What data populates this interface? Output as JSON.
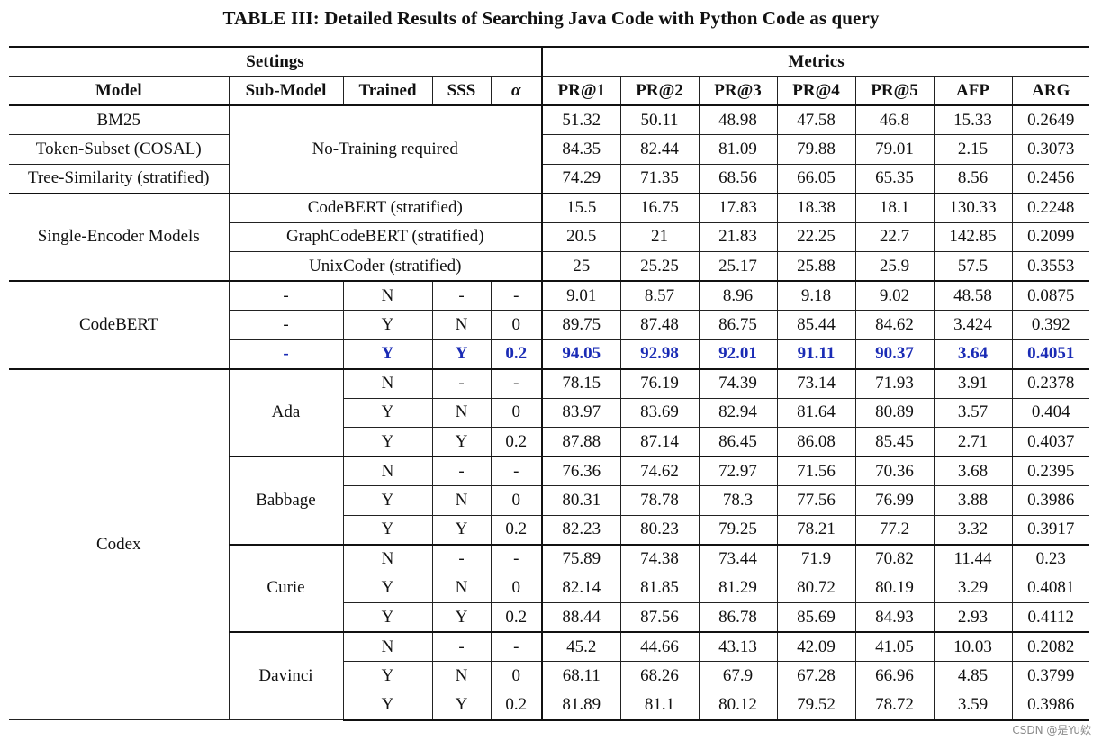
{
  "caption": "TABLE III: Detailed Results of Searching Java Code with Python Code as query",
  "group_headers": {
    "settings": "Settings",
    "metrics": "Metrics"
  },
  "columns": [
    "Model",
    "Sub-Model",
    "Trained",
    "SSS",
    "α",
    "PR@1",
    "PR@2",
    "PR@3",
    "PR@4",
    "PR@5",
    "AFP",
    "ARG"
  ],
  "no_training_label": "No-Training required",
  "baselines": [
    {
      "model": "BM25",
      "metrics": [
        "51.32",
        "50.11",
        "48.98",
        "47.58",
        "46.8",
        "15.33",
        "0.2649"
      ]
    },
    {
      "model": "Token-Subset (COSAL)",
      "metrics": [
        "84.35",
        "82.44",
        "81.09",
        "79.88",
        "79.01",
        "2.15",
        "0.3073"
      ]
    },
    {
      "model": "Tree-Similarity (stratified)",
      "metrics": [
        "74.29",
        "71.35",
        "68.56",
        "66.05",
        "65.35",
        "8.56",
        "0.2456"
      ]
    }
  ],
  "single_encoder": {
    "model": "Single-Encoder Models",
    "rows": [
      {
        "sub": "CodeBERT (stratified)",
        "metrics": [
          "15.5",
          "16.75",
          "17.83",
          "18.38",
          "18.1",
          "130.33",
          "0.2248"
        ]
      },
      {
        "sub": "GraphCodeBERT (stratified)",
        "metrics": [
          "20.5",
          "21",
          "21.83",
          "22.25",
          "22.7",
          "142.85",
          "0.2099"
        ]
      },
      {
        "sub": "UnixCoder (stratified)",
        "metrics": [
          "25",
          "25.25",
          "25.17",
          "25.88",
          "25.9",
          "57.5",
          "0.3553"
        ]
      }
    ]
  },
  "codebert": {
    "model": "CodeBERT",
    "rows": [
      {
        "sub": "-",
        "trained": "N",
        "sss": "-",
        "alpha": "-",
        "metrics": [
          "9.01",
          "8.57",
          "8.96",
          "9.18",
          "9.02",
          "48.58",
          "0.0875"
        ]
      },
      {
        "sub": "-",
        "trained": "Y",
        "sss": "N",
        "alpha": "0",
        "metrics": [
          "89.75",
          "87.48",
          "86.75",
          "85.44",
          "84.62",
          "3.424",
          "0.392"
        ]
      },
      {
        "sub": "-",
        "trained": "Y",
        "sss": "Y",
        "alpha": "0.2",
        "metrics": [
          "94.05",
          "92.98",
          "92.01",
          "91.11",
          "90.37",
          "3.64",
          "0.4051"
        ]
      }
    ]
  },
  "codex": {
    "model": "Codex",
    "submodels": [
      {
        "name": "Ada",
        "rows": [
          {
            "trained": "N",
            "sss": "-",
            "alpha": "-",
            "metrics": [
              "78.15",
              "76.19",
              "74.39",
              "73.14",
              "71.93",
              "3.91",
              "0.2378"
            ]
          },
          {
            "trained": "Y",
            "sss": "N",
            "alpha": "0",
            "metrics": [
              "83.97",
              "83.69",
              "82.94",
              "81.64",
              "80.89",
              "3.57",
              "0.404"
            ]
          },
          {
            "trained": "Y",
            "sss": "Y",
            "alpha": "0.2",
            "metrics": [
              "87.88",
              "87.14",
              "86.45",
              "86.08",
              "85.45",
              "2.71",
              "0.4037"
            ]
          }
        ]
      },
      {
        "name": "Babbage",
        "rows": [
          {
            "trained": "N",
            "sss": "-",
            "alpha": "-",
            "metrics": [
              "76.36",
              "74.62",
              "72.97",
              "71.56",
              "70.36",
              "3.68",
              "0.2395"
            ]
          },
          {
            "trained": "Y",
            "sss": "N",
            "alpha": "0",
            "metrics": [
              "80.31",
              "78.78",
              "78.3",
              "77.56",
              "76.99",
              "3.88",
              "0.3986"
            ]
          },
          {
            "trained": "Y",
            "sss": "Y",
            "alpha": "0.2",
            "metrics": [
              "82.23",
              "80.23",
              "79.25",
              "78.21",
              "77.2",
              "3.32",
              "0.3917"
            ]
          }
        ]
      },
      {
        "name": "Curie",
        "rows": [
          {
            "trained": "N",
            "sss": "-",
            "alpha": "-",
            "metrics": [
              "75.89",
              "74.38",
              "73.44",
              "71.9",
              "70.82",
              "11.44",
              "0.23"
            ]
          },
          {
            "trained": "Y",
            "sss": "N",
            "alpha": "0",
            "metrics": [
              "82.14",
              "81.85",
              "81.29",
              "80.72",
              "80.19",
              "3.29",
              "0.4081"
            ]
          },
          {
            "trained": "Y",
            "sss": "Y",
            "alpha": "0.2",
            "metrics": [
              "88.44",
              "87.56",
              "86.78",
              "85.69",
              "84.93",
              "2.93",
              "0.4112"
            ]
          }
        ]
      },
      {
        "name": "Davinci",
        "rows": [
          {
            "trained": "N",
            "sss": "-",
            "alpha": "-",
            "metrics": [
              "45.2",
              "44.66",
              "43.13",
              "42.09",
              "41.05",
              "10.03",
              "0.2082"
            ]
          },
          {
            "trained": "Y",
            "sss": "N",
            "alpha": "0",
            "metrics": [
              "68.11",
              "68.26",
              "67.9",
              "67.28",
              "66.96",
              "4.85",
              "0.3799"
            ]
          },
          {
            "trained": "Y",
            "sss": "Y",
            "alpha": "0.2",
            "metrics": [
              "81.89",
              "81.1",
              "80.12",
              "79.52",
              "78.72",
              "3.59",
              "0.3986"
            ]
          }
        ]
      }
    ]
  },
  "watermark": "CSDN @是Yu欸"
}
